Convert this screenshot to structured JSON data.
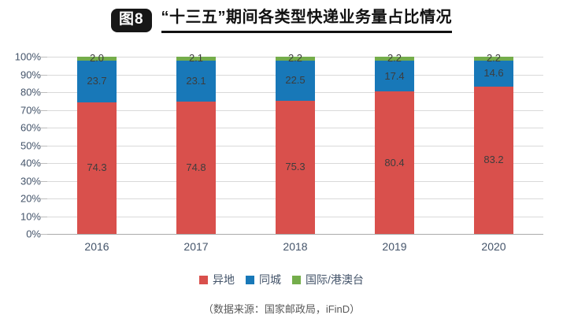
{
  "header": {
    "badge": "图8",
    "title": "“十三五”期间各类型快递业务量占比情况"
  },
  "chart_data": {
    "type": "bar",
    "stacked": true,
    "title": "“十三五”期间各类型快递业务量占比情况",
    "categories": [
      "2016",
      "2017",
      "2018",
      "2019",
      "2020"
    ],
    "series": [
      {
        "name": "异地",
        "color": "#d9504c",
        "values": [
          74.3,
          74.8,
          75.3,
          80.4,
          83.2
        ]
      },
      {
        "name": "同城",
        "color": "#1878b8",
        "values": [
          23.7,
          23.1,
          22.5,
          17.4,
          14.6
        ]
      },
      {
        "name": "国际/港澳台",
        "color": "#74ad4b",
        "values": [
          2.0,
          2.1,
          2.2,
          2.2,
          2.2
        ]
      }
    ],
    "y_ticks": [
      "100%",
      "90%",
      "80%",
      "70%",
      "60%",
      "50%",
      "40%",
      "30%",
      "20%",
      "10%",
      "0%"
    ],
    "ylim": [
      0,
      100
    ],
    "xlabel": "",
    "ylabel": "",
    "grid": true,
    "legend_position": "bottom",
    "value_label_decimals": 1
  },
  "colors": {
    "gridline": "#d9d9d9",
    "axis_line": "#ababab",
    "axis_text": "#44546a",
    "value_label_text": "#3d3d3d",
    "badge_bg": "#171717",
    "badge_text": "#ffffff",
    "source_text": "#595959"
  },
  "footer": {
    "source": "（数据来源：国家邮政局，iFinD）"
  }
}
